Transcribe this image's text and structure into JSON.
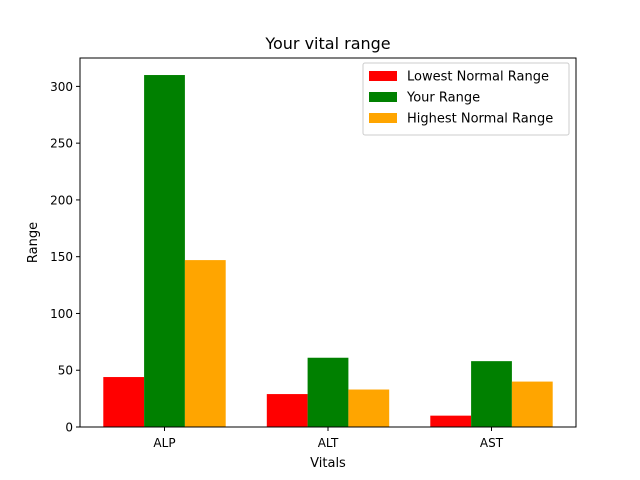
{
  "chart_data": {
    "type": "bar",
    "title": "Your vital range",
    "xlabel": "Vitals",
    "ylabel": "Range",
    "categories": [
      "ALP",
      "ALT",
      "AST"
    ],
    "series": [
      {
        "name": "Lowest Normal Range",
        "color": "#ff0000",
        "values": [
          44,
          29,
          10
        ]
      },
      {
        "name": "Your Range",
        "color": "#008000",
        "values": [
          310,
          61,
          58
        ]
      },
      {
        "name": "Highest Normal Range",
        "color": "#ffa500",
        "values": [
          147,
          33,
          40
        ]
      }
    ],
    "ylim": [
      0,
      325
    ],
    "yticks": [
      0,
      50,
      100,
      150,
      200,
      250,
      300
    ],
    "legend": "top-right",
    "grid": false
  }
}
